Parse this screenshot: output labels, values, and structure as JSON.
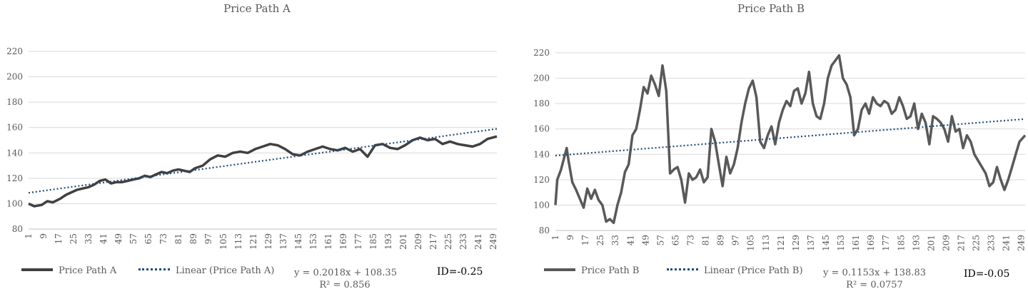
{
  "chart_data": [
    {
      "type": "line",
      "title": "Price Path A",
      "ylim": [
        80,
        220
      ],
      "yticks": [
        80,
        100,
        120,
        140,
        160,
        180,
        200,
        220
      ],
      "xlim": [
        1,
        251
      ],
      "xticks": [
        1,
        9,
        17,
        25,
        33,
        41,
        49,
        57,
        65,
        73,
        81,
        89,
        97,
        105,
        113,
        121,
        129,
        137,
        145,
        153,
        161,
        169,
        177,
        185,
        193,
        201,
        209,
        217,
        225,
        233,
        241,
        249
      ],
      "grid": true,
      "legend_position": "bottom",
      "series": [
        {
          "name": "Price Path A",
          "style": "solid",
          "color": "#404040",
          "x": [
            1,
            4,
            8,
            11,
            14,
            18,
            21,
            24,
            27,
            30,
            33,
            36,
            39,
            42,
            45,
            48,
            51,
            54,
            57,
            60,
            63,
            66,
            69,
            72,
            75,
            78,
            81,
            84,
            87,
            90,
            94,
            98,
            102,
            106,
            110,
            114,
            118,
            122,
            126,
            130,
            134,
            138,
            142,
            146,
            150,
            154,
            158,
            162,
            166,
            170,
            174,
            178,
            182,
            186,
            190,
            194,
            198,
            202,
            206,
            210,
            214,
            218,
            222,
            226,
            230,
            234,
            238,
            242,
            246,
            251
          ],
          "y": [
            100,
            98,
            99,
            102,
            101,
            104,
            107,
            109,
            111,
            112,
            113,
            115,
            118,
            119,
            116,
            117,
            117,
            118,
            119,
            120,
            122,
            121,
            123,
            125,
            124,
            126,
            127,
            126,
            125,
            128,
            130,
            135,
            138,
            137,
            140,
            141,
            140,
            143,
            145,
            147,
            146,
            143,
            139,
            138,
            141,
            143,
            145,
            143,
            142,
            144,
            141,
            143,
            137,
            146,
            147,
            144,
            143,
            146,
            150,
            152,
            150,
            151,
            147,
            149,
            147,
            146,
            145,
            147,
            151,
            153
          ]
        },
        {
          "name": "Linear (Price Path A)",
          "style": "dotted",
          "color": "#1f4e79",
          "x": [
            1,
            251
          ],
          "y": [
            108.55,
            159.0
          ]
        }
      ],
      "equation": "y = 0.2018x + 108.35",
      "r_squared": "R² = 0.856",
      "id_label": "ID=-0.25"
    },
    {
      "type": "line",
      "title": "Price Path B",
      "ylim": [
        80,
        220
      ],
      "yticks": [
        80,
        100,
        120,
        140,
        160,
        180,
        200,
        220
      ],
      "xlim": [
        1,
        251
      ],
      "xticks": [
        1,
        9,
        17,
        25,
        33,
        41,
        49,
        57,
        65,
        73,
        81,
        89,
        97,
        105,
        113,
        121,
        129,
        137,
        145,
        153,
        161,
        169,
        177,
        185,
        193,
        201,
        209,
        217,
        225,
        233,
        241,
        249
      ],
      "grid": true,
      "legend_position": "bottom",
      "series": [
        {
          "name": "Price Path B",
          "style": "solid",
          "color": "#595959",
          "x": [
            1,
            2,
            4,
            7,
            8,
            10,
            12,
            14,
            16,
            18,
            20,
            22,
            24,
            26,
            28,
            30,
            32,
            34,
            36,
            38,
            40,
            42,
            44,
            46,
            48,
            50,
            52,
            54,
            56,
            58,
            60,
            62,
            64,
            66,
            68,
            70,
            72,
            74,
            76,
            78,
            80,
            82,
            84,
            86,
            88,
            90,
            92,
            94,
            96,
            98,
            100,
            102,
            104,
            106,
            108,
            110,
            112,
            114,
            116,
            118,
            120,
            122,
            124,
            126,
            128,
            130,
            132,
            134,
            136,
            138,
            140,
            142,
            144,
            146,
            148,
            150,
            152,
            154,
            156,
            158,
            160,
            162,
            164,
            166,
            168,
            170,
            172,
            174,
            176,
            178,
            180,
            182,
            184,
            186,
            188,
            190,
            192,
            194,
            196,
            198,
            200,
            202,
            204,
            206,
            208,
            210,
            212,
            214,
            216,
            218,
            220,
            222,
            224,
            226,
            228,
            230,
            232,
            234,
            236,
            238,
            240,
            242,
            244,
            246,
            248,
            251
          ],
          "y": [
            100,
            120,
            128,
            145,
            135,
            118,
            112,
            105,
            98,
            113,
            105,
            112,
            104,
            100,
            87,
            89,
            86,
            100,
            110,
            126,
            132,
            155,
            160,
            175,
            193,
            188,
            202,
            195,
            186,
            210,
            190,
            125,
            128,
            130,
            120,
            102,
            125,
            120,
            122,
            128,
            118,
            122,
            160,
            150,
            132,
            115,
            138,
            125,
            132,
            145,
            165,
            180,
            192,
            198,
            185,
            150,
            145,
            155,
            162,
            148,
            165,
            175,
            182,
            178,
            190,
            192,
            180,
            188,
            205,
            180,
            170,
            168,
            180,
            200,
            210,
            214,
            218,
            200,
            195,
            185,
            155,
            160,
            175,
            180,
            172,
            185,
            180,
            178,
            182,
            180,
            172,
            175,
            185,
            178,
            168,
            170,
            180,
            160,
            172,
            165,
            148,
            170,
            168,
            165,
            160,
            150,
            170,
            158,
            160,
            145,
            155,
            150,
            140,
            135,
            130,
            125,
            115,
            118,
            130,
            120,
            112,
            120,
            130,
            140,
            150,
            155
          ]
        },
        {
          "name": "Linear (Price Path B)",
          "style": "dotted",
          "color": "#1f4e79",
          "x": [
            1,
            251
          ],
          "y": [
            138.98,
            167.8
          ]
        }
      ],
      "equation": "y = 0.1153x + 138.83",
      "r_squared": "R² = 0.0757",
      "id_label": "ID=-0.05"
    }
  ]
}
